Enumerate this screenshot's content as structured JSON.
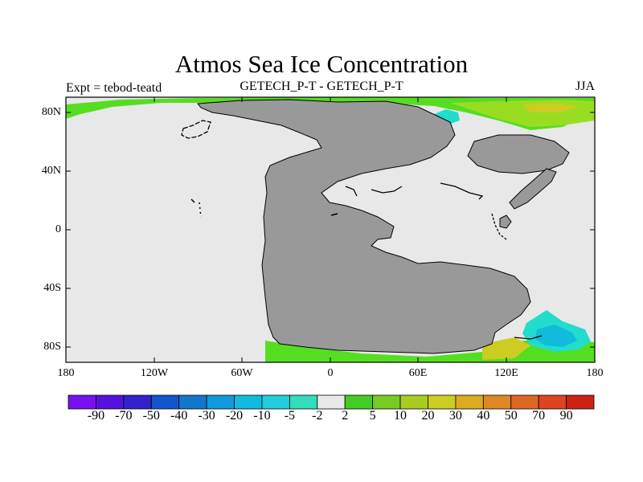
{
  "title": "Atmos Sea Ice Concentration",
  "left_label": "Expt = tebod-teatd",
  "center_label": "GETECH_P-T - GETECH_P-T",
  "right_label": "JJA",
  "colors": {
    "background_field": "#e8e8e8",
    "land": "#999999",
    "coast": "#000000",
    "positive_low": "#55dd22",
    "positive_mid": "#99dd22",
    "positive_high": "#cccc22",
    "negative_low": "#22ddcc",
    "negative_mid": "#22bbdd"
  },
  "chart_data": {
    "type": "heatmap",
    "title": "Atmos Sea Ice Concentration",
    "xlim": [
      -180,
      180
    ],
    "ylim": [
      -90,
      90
    ],
    "x_ticks": [
      "180",
      "120W",
      "60W",
      "0",
      "60E",
      "120E",
      "180"
    ],
    "y_ticks": [
      "80N",
      "40N",
      "0",
      "40S",
      "80S"
    ],
    "colorbar": {
      "labels": [
        "-90",
        "-70",
        "-50",
        "-40",
        "-30",
        "-20",
        "-10",
        "-5",
        "-2",
        "2",
        "5",
        "10",
        "20",
        "30",
        "40",
        "50",
        "70",
        "90"
      ],
      "colors": [
        "#7711ee",
        "#5511dd",
        "#3322cc",
        "#1155cc",
        "#1177cc",
        "#1199dd",
        "#11bbdd",
        "#22ccdd",
        "#33ddbb",
        "#e8e8e8",
        "#44cc22",
        "#77cc22",
        "#aacc22",
        "#cccc22",
        "#ddaa22",
        "#dd8822",
        "#dd6622",
        "#dd4422",
        "#cc2211"
      ]
    }
  }
}
